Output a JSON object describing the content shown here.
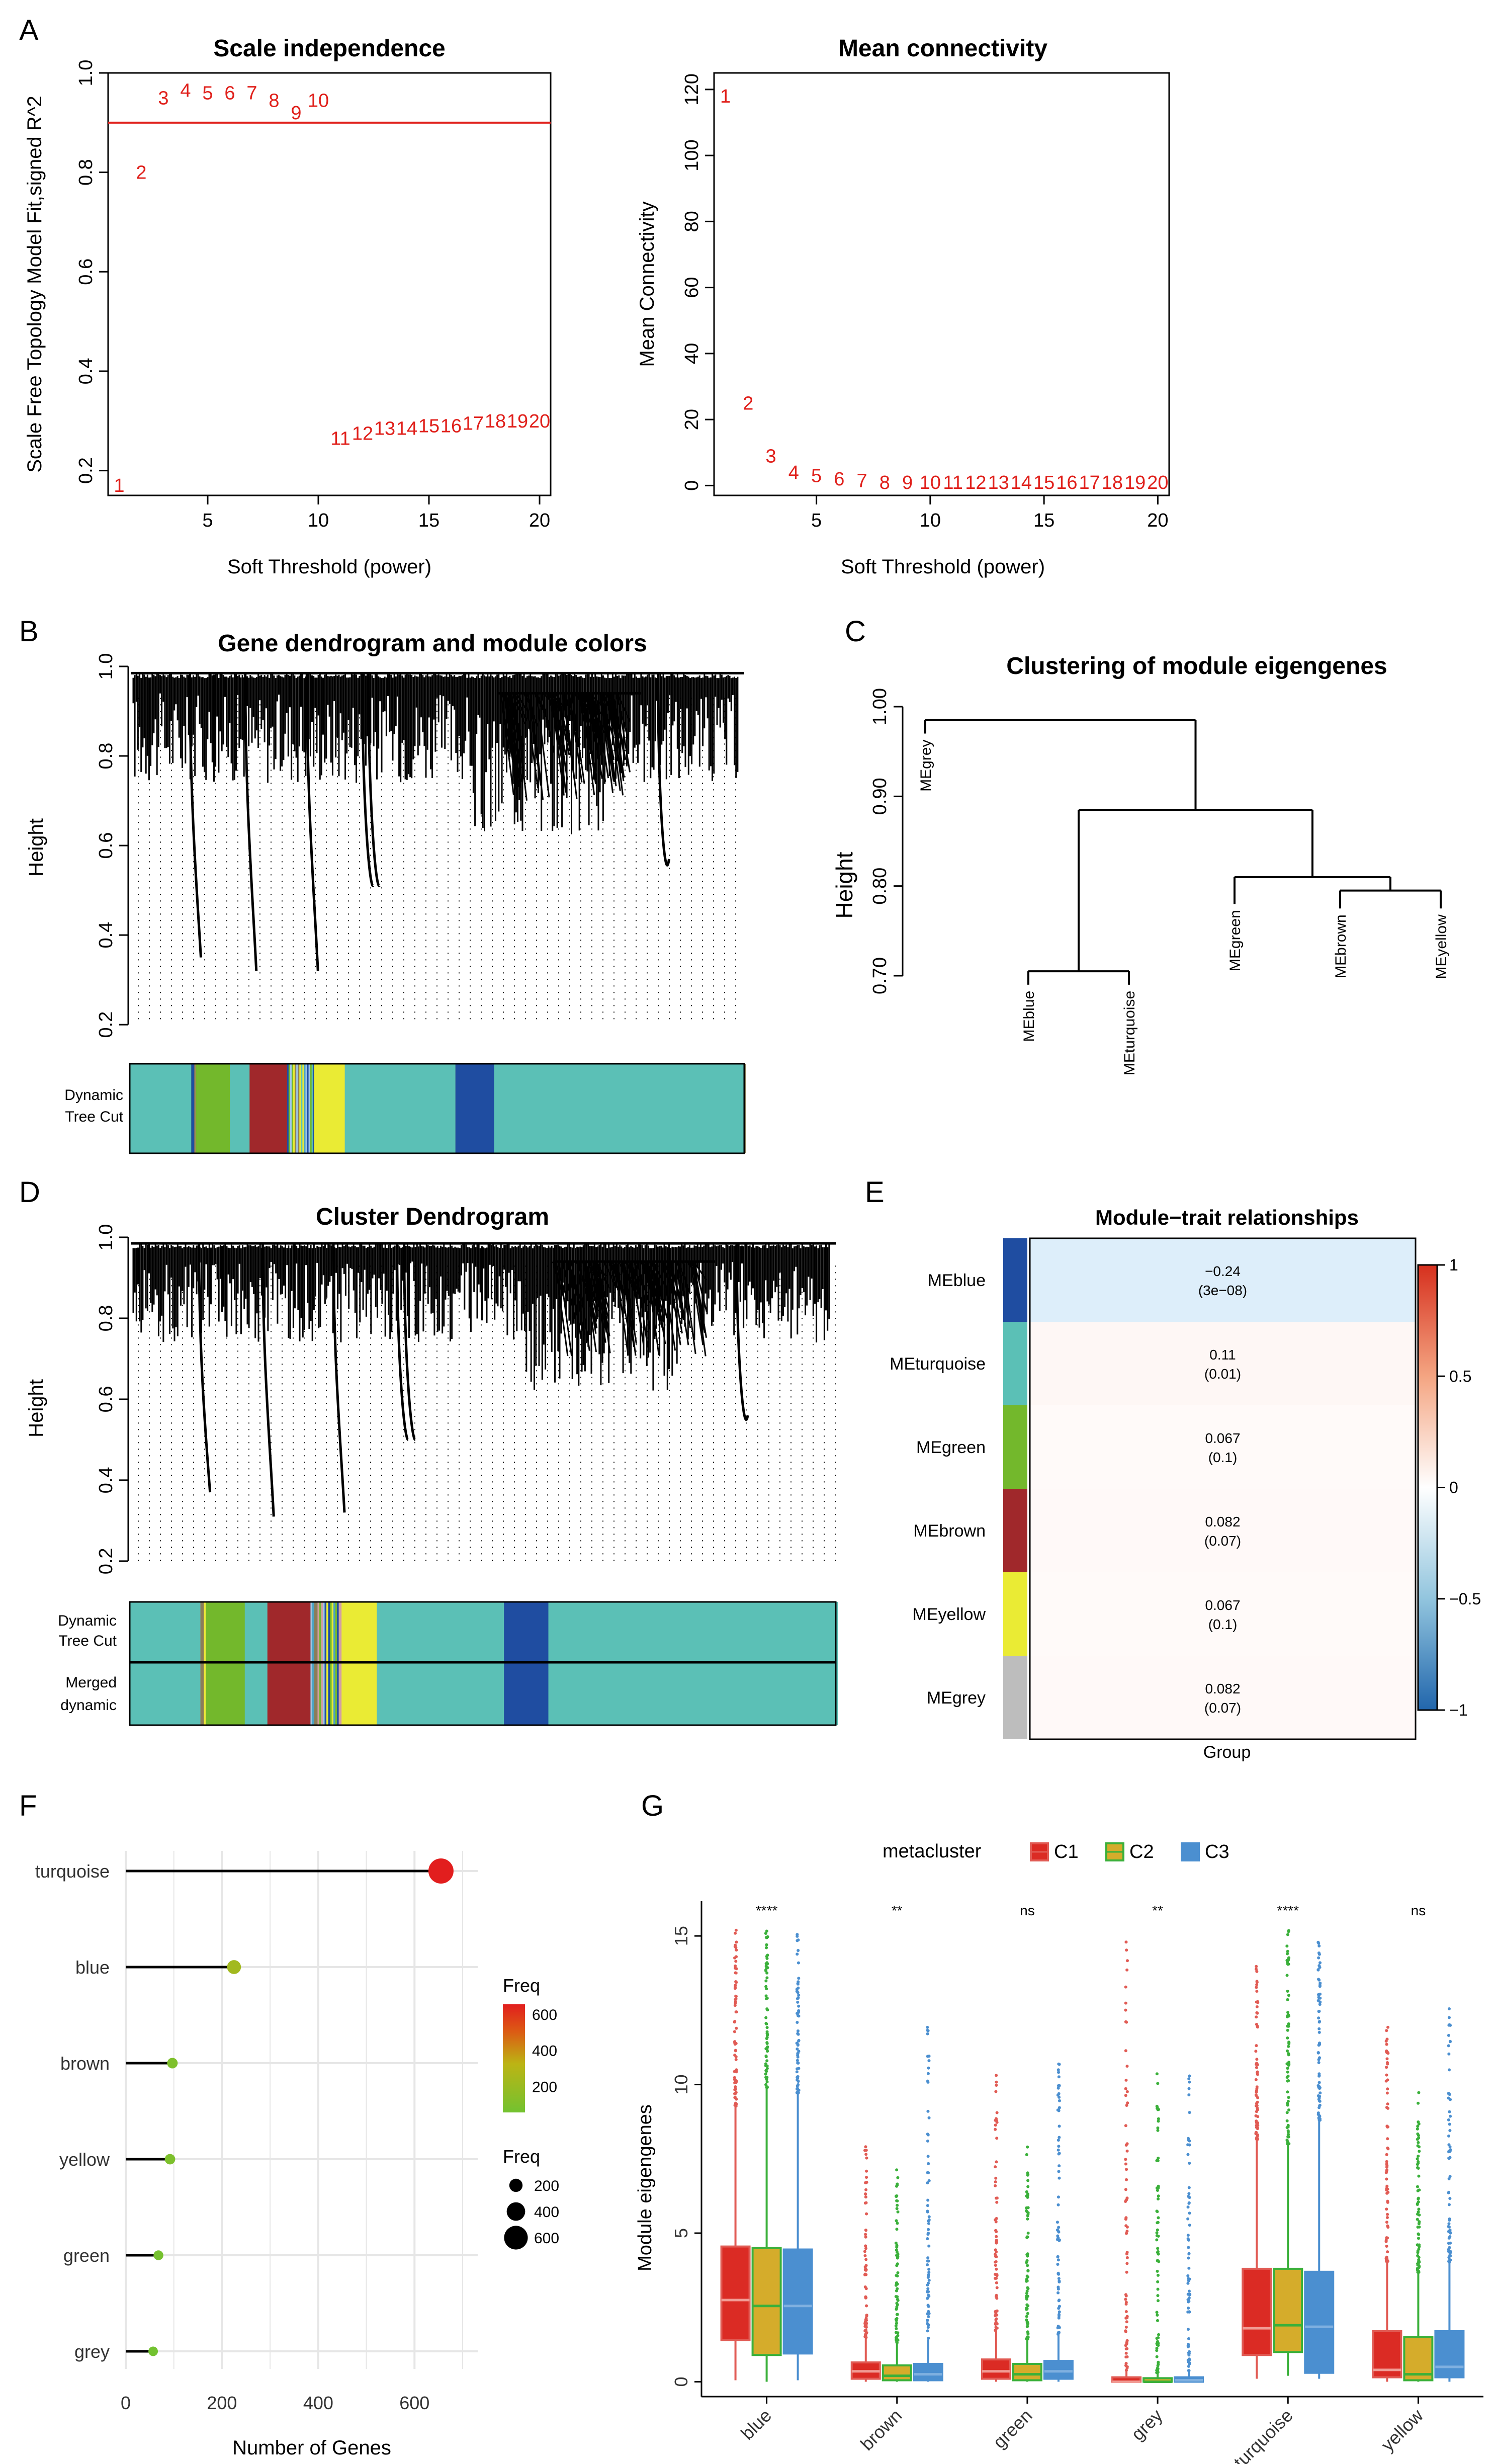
{
  "panel_letters": [
    "A",
    "B",
    "C",
    "D",
    "E",
    "F",
    "G"
  ],
  "chart_data": [
    {
      "id": "A1",
      "type": "scatter",
      "title": "Scale independence",
      "xlabel": "Soft Threshold (power)",
      "ylabel": "Scale Free Topology Model Fit,signed R^2",
      "xlim": [
        0.5,
        20.5
      ],
      "ylim": [
        0.15,
        1.0
      ],
      "xticks": [
        5,
        10,
        15,
        20
      ],
      "yticks": [
        0.2,
        0.4,
        0.6,
        0.8,
        1.0
      ],
      "ytick_labels": [
        "0.2",
        "0.4",
        "0.6",
        "0.8",
        "1.0"
      ],
      "hline": 0.9,
      "x": [
        1,
        2,
        3,
        4,
        5,
        6,
        7,
        8,
        9,
        10,
        11,
        12,
        13,
        14,
        15,
        16,
        17,
        18,
        19,
        20
      ],
      "y": [
        0.17,
        0.8,
        0.95,
        0.965,
        0.96,
        0.96,
        0.96,
        0.945,
        0.92,
        0.945,
        0.265,
        0.275,
        0.285,
        0.285,
        0.29,
        0.29,
        0.295,
        0.3,
        0.3,
        0.3
      ],
      "point_labels": [
        "1",
        "2",
        "3",
        "4",
        "5",
        "6",
        "7",
        "8",
        "9",
        "10",
        "11",
        "12",
        "13",
        "14",
        "15",
        "16",
        "17",
        "18",
        "19",
        "20"
      ],
      "color": "#e0201b"
    },
    {
      "id": "A2",
      "type": "scatter",
      "title": "Mean connectivity",
      "xlabel": "Soft Threshold (power)",
      "ylabel": "Mean Connectivity",
      "xlim": [
        0.5,
        20.5
      ],
      "ylim": [
        -3,
        125
      ],
      "xticks": [
        5,
        10,
        15,
        20
      ],
      "yticks": [
        0,
        20,
        40,
        60,
        80,
        100,
        120
      ],
      "x": [
        1,
        2,
        3,
        4,
        5,
        6,
        7,
        8,
        9,
        10,
        11,
        12,
        13,
        14,
        15,
        16,
        17,
        18,
        19,
        20
      ],
      "y": [
        118,
        25,
        9,
        4,
        3,
        2,
        1.5,
        1,
        1,
        1,
        1,
        1,
        1,
        1,
        1,
        1,
        1,
        1,
        1,
        1
      ],
      "point_labels": [
        "1",
        "2",
        "3",
        "4",
        "5",
        "6",
        "7",
        "8",
        "9",
        "10",
        "11",
        "12",
        "13",
        "14",
        "15",
        "16",
        "17",
        "18",
        "19",
        "20"
      ],
      "color": "#e0201b"
    },
    {
      "id": "B",
      "type": "dendrogram",
      "title": "Gene dendrogram and module colors",
      "ylabel": "Height",
      "yticks": [
        0.2,
        0.4,
        0.6,
        0.8,
        1.0
      ],
      "ylim": [
        0.18,
        1.0
      ],
      "color_rows": [
        "Dynamic Tree Cut"
      ],
      "color_row_label_lines": [
        [
          "Dynamic",
          "Tree Cut"
        ]
      ],
      "long_branch_heights": [
        0.35,
        0.32,
        0.32,
        0.51,
        0.51,
        0.57
      ],
      "module_bands": [
        {
          "module": "turquoise",
          "color": "#5bc0b6",
          "start": 0.0,
          "end": 0.1
        },
        {
          "module": "green",
          "color": "#73b82c",
          "start": 0.108,
          "end": 0.163
        },
        {
          "module": "turquoise",
          "color": "#5bc0b6",
          "start": 0.163,
          "end": 0.195
        },
        {
          "module": "brown",
          "color": "#a0282b",
          "start": 0.195,
          "end": 0.256
        },
        {
          "module": "yellow",
          "color": "#eaeb34",
          "start": 0.3,
          "end": 0.35
        },
        {
          "module": "turquoise",
          "color": "#5bc0b6",
          "start": 0.35,
          "end": 0.53
        },
        {
          "module": "blue",
          "color": "#1f4da1",
          "start": 0.53,
          "end": 0.593
        },
        {
          "module": "turquoise",
          "color": "#5bc0b6",
          "start": 0.593,
          "end": 1.0
        }
      ]
    },
    {
      "id": "C",
      "type": "dendrogram",
      "title": "Clustering of module eigengenes",
      "ylabel": "Height",
      "yticks": [
        0.7,
        0.8,
        0.9,
        1.0
      ],
      "ytick_labels": [
        "0.70",
        "0.80",
        "0.90",
        "1.00"
      ],
      "ylim": [
        0.7,
        1.0
      ],
      "leaves": [
        "MEgrey",
        "MEblue",
        "MEturquoise",
        "MEgreen",
        "MEbrown",
        "MEyellow"
      ],
      "merges": [
        {
          "left": "MEblue",
          "right": "MEturquoise",
          "height": 0.705
        },
        {
          "left": "MEbrown",
          "right": "MEyellow",
          "height": 0.795
        },
        {
          "left": "MEgreen",
          "right": "MEbrown+MEyellow",
          "height": 0.81
        },
        {
          "left": "MEblue+MEturquoise",
          "right": "MEgreen+MEbrown+MEyellow",
          "height": 0.885
        },
        {
          "left": "MEgrey",
          "right": "rest",
          "height": 0.985
        }
      ]
    },
    {
      "id": "D",
      "type": "dendrogram",
      "title": "Cluster Dendrogram",
      "ylabel": "Height",
      "yticks": [
        0.2,
        0.4,
        0.6,
        0.8,
        1.0
      ],
      "ylim": [
        0.18,
        1.0
      ],
      "color_rows": [
        "Dynamic Tree Cut",
        "Merged dynamic"
      ],
      "color_row_label_lines": [
        [
          "Dynamic",
          "Tree Cut"
        ],
        [
          "Merged",
          "dynamic"
        ]
      ],
      "long_branch_heights": [
        0.37,
        0.31,
        0.32,
        0.5,
        0.5,
        0.56
      ]
    },
    {
      "id": "E",
      "type": "heatmap",
      "title": "Module−trait relationships",
      "xlabel": "Group",
      "rows": [
        "MEblue",
        "MEturquoise",
        "MEgreen",
        "MEbrown",
        "MEyellow",
        "MEgrey"
      ],
      "row_colors": [
        "#1f4da1",
        "#5bc0b6",
        "#73b82c",
        "#a0282b",
        "#eaeb34",
        "#bdbdbd"
      ],
      "values": [
        -0.24,
        0.11,
        0.067,
        0.082,
        0.067,
        0.082
      ],
      "value_labels": [
        "−0.24",
        "0.11",
        "0.067",
        "0.082",
        "0.067",
        "0.082"
      ],
      "p_labels": [
        "(3e−08)",
        "(0.01)",
        "(0.1)",
        "(0.07)",
        "(0.1)",
        "(0.07)"
      ],
      "colorbar_range": [
        -1,
        1
      ],
      "colorbar_ticks": [
        -1,
        -0.5,
        0,
        0.5,
        1
      ],
      "colorbar_tick_labels": [
        "−1",
        "−0.5",
        "0",
        "0.5",
        "1"
      ]
    },
    {
      "id": "F",
      "type": "lollipop",
      "xlabel": "Number of Genes",
      "xlim": [
        0,
        700
      ],
      "xticks": [
        0,
        200,
        400,
        600
      ],
      "categories": [
        "turquoise",
        "blue",
        "brown",
        "yellow",
        "green",
        "grey"
      ],
      "values": [
        655,
        225,
        97,
        92,
        68,
        57
      ],
      "legend_color": {
        "title": "Freq",
        "ticks": [
          200,
          400,
          600
        ]
      },
      "legend_size": {
        "title": "Freq",
        "ticks": [
          200,
          400,
          600
        ]
      }
    },
    {
      "id": "G",
      "type": "boxplot",
      "ylabel": "Module eigengenes",
      "ylim": [
        -0.5,
        16
      ],
      "yticks": [
        0,
        5,
        10,
        15
      ],
      "categories": [
        "blue",
        "brown",
        "green",
        "grey",
        "turquoise",
        "yellow"
      ],
      "significance": [
        "****",
        "**",
        "ns",
        "**",
        "****",
        "ns"
      ],
      "legend_title": "metacluster",
      "series": [
        {
          "name": "C1",
          "color": "#e15b54",
          "fill": "#db2b24",
          "boxes": [
            [
              0.05,
              1.4,
              2.75,
              4.55,
              15.2
            ],
            [
              0.0,
              0.1,
              0.35,
              0.65,
              8.0
            ],
            [
              0.0,
              0.1,
              0.35,
              0.75,
              10.4
            ],
            [
              0.0,
              0.0,
              0.0,
              0.15,
              14.8
            ],
            [
              0.1,
              0.9,
              1.8,
              3.8,
              14.3
            ],
            [
              0.0,
              0.15,
              0.4,
              1.7,
              12.1
            ]
          ]
        },
        {
          "name": "C2",
          "color": "#3ab03a",
          "fill": "#d5ac2b",
          "boxes": [
            [
              0.0,
              0.9,
              2.55,
              4.5,
              15.2
            ],
            [
              0.0,
              0.05,
              0.2,
              0.55,
              7.4
            ],
            [
              0.0,
              0.05,
              0.25,
              0.6,
              8.1
            ],
            [
              0.0,
              0.0,
              0.0,
              0.12,
              10.8
            ],
            [
              0.2,
              1.0,
              1.9,
              3.8,
              15.2
            ],
            [
              0.0,
              0.05,
              0.25,
              1.5,
              10.1
            ]
          ]
        },
        {
          "name": "C3",
          "color": "#4b8fd0",
          "fill": "#4b8fd0",
          "boxes": [
            [
              0.05,
              0.95,
              2.55,
              4.45,
              15.2
            ],
            [
              0.0,
              0.05,
              0.25,
              0.6,
              12.0
            ],
            [
              0.0,
              0.1,
              0.35,
              0.7,
              10.7
            ],
            [
              0.0,
              0.0,
              0.05,
              0.15,
              11.2
            ],
            [
              0.1,
              0.3,
              1.85,
              3.7,
              14.8
            ],
            [
              0.0,
              0.15,
              0.5,
              1.7,
              13.0
            ]
          ]
        }
      ]
    }
  ]
}
